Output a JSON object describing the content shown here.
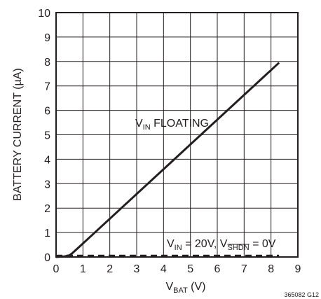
{
  "chart_data": {
    "type": "line",
    "x_axis": {
      "label_main": "V",
      "label_sub": "BAT",
      "label_unit": " (V)",
      "min": 0,
      "max": 9,
      "ticks": [
        "0",
        "1",
        "2",
        "3",
        "4",
        "5",
        "6",
        "7",
        "8",
        "9"
      ]
    },
    "y_axis": {
      "label": "BATTERY CURRENT (µA)",
      "min": 0,
      "max": 10,
      "ticks": [
        "0",
        "1",
        "2",
        "3",
        "4",
        "5",
        "6",
        "7",
        "8",
        "9",
        "10"
      ]
    },
    "grid": true,
    "series": [
      {
        "label_main": "V",
        "label_sub": "IN",
        "label_rest": " FLOATING",
        "style": "solid",
        "x": [
          0,
          0.3,
          0.5,
          0.6,
          0.7,
          0.9,
          8.3
        ],
        "y": [
          0,
          0.02,
          0.07,
          0.15,
          0.25,
          0.45,
          7.95
        ]
      },
      {
        "label_v1": "V",
        "label_sub1": "IN",
        "label_mid": " = 20V, V",
        "label_sub2": "SHDN",
        "label_end": " = 0V",
        "style": "dashed",
        "x": [
          0,
          8.3
        ],
        "y": [
          0.05,
          0.05
        ]
      }
    ],
    "figure_id": "365082 G12"
  }
}
